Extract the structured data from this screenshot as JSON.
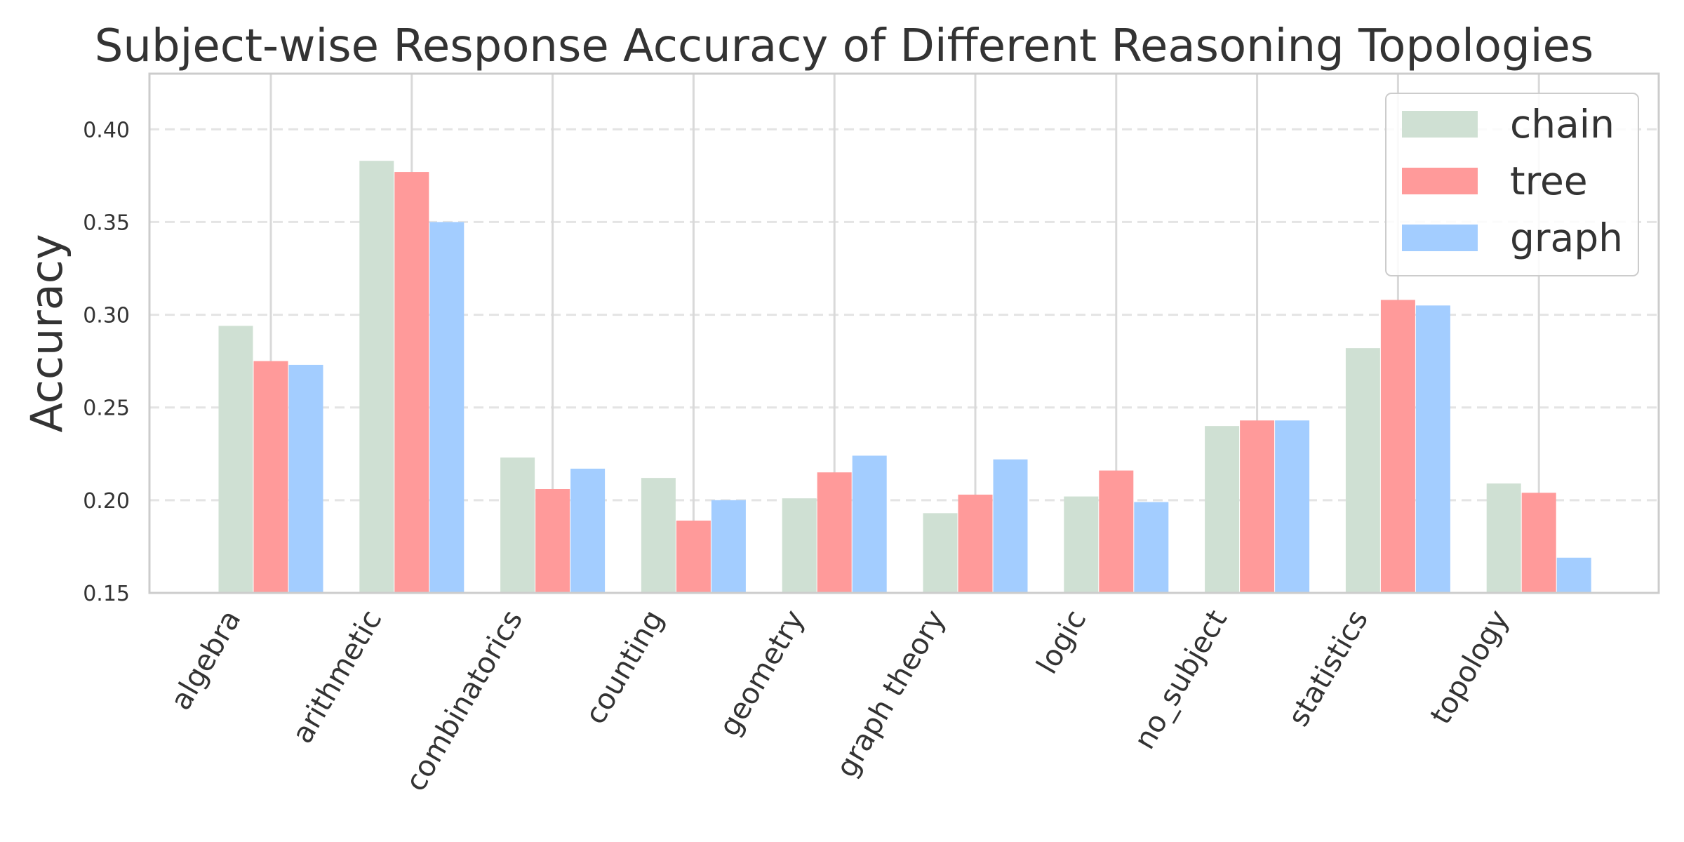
{
  "chart_data": {
    "type": "bar",
    "title": "Subject-wise Response Accuracy of Different Reasoning Topologies",
    "xlabel": "",
    "ylabel": "Accuracy",
    "ylim": [
      0.15,
      0.43
    ],
    "yticks": [
      "0.15",
      "0.20",
      "0.25",
      "0.30",
      "0.35",
      "0.40"
    ],
    "grid": "y-dashed",
    "legend_position": "top-right",
    "categories": [
      "algebra",
      "arithmetic",
      "combinatorics",
      "counting",
      "geometry",
      "graph theory",
      "logic",
      "no_subject",
      "statistics",
      "topology"
    ],
    "series": [
      {
        "name": "chain",
        "color": "#cfe0d3",
        "values": [
          0.294,
          0.383,
          0.223,
          0.212,
          0.201,
          0.193,
          0.202,
          0.24,
          0.282,
          0.209
        ]
      },
      {
        "name": "tree",
        "color": "#ff9a9a",
        "values": [
          0.275,
          0.377,
          0.206,
          0.189,
          0.215,
          0.203,
          0.216,
          0.243,
          0.308,
          0.204
        ]
      },
      {
        "name": "graph",
        "color": "#a3cdff",
        "values": [
          0.273,
          0.35,
          0.217,
          0.2,
          0.224,
          0.222,
          0.199,
          0.243,
          0.305,
          0.169
        ]
      }
    ]
  }
}
